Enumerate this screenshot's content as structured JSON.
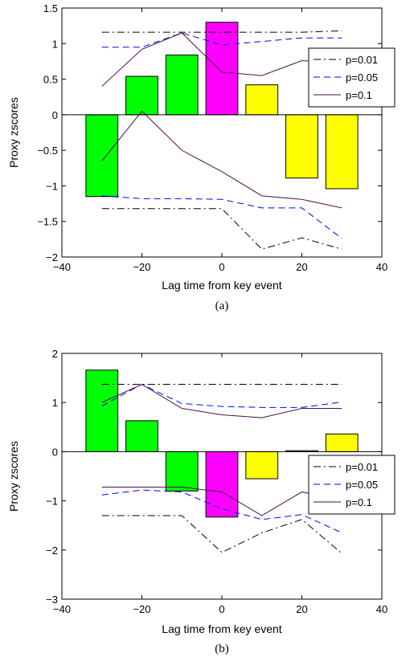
{
  "chart_data": [
    {
      "type": "bar",
      "caption": "(a)",
      "xlabel": "Lag time from key event",
      "ylabel": "Proxy zscores",
      "xlim": [
        -40,
        40
      ],
      "ylim": [
        -2,
        1.5
      ],
      "xticks": [
        -40,
        -20,
        0,
        20,
        40
      ],
      "xtick_labels": [
        "−40",
        "−20",
        "0",
        "20",
        "40"
      ],
      "yticks": [
        -2,
        -1.5,
        -1,
        -0.5,
        0,
        0.5,
        1,
        1.5
      ],
      "ytick_labels": [
        "−2",
        "−1.5",
        "−1",
        "−0.5",
        "0",
        "0.5",
        "1",
        "1.5"
      ],
      "bar_width": 8,
      "bars": [
        {
          "x": -30,
          "value": -1.15,
          "color": "#00ff00"
        },
        {
          "x": -20,
          "value": 0.54,
          "color": "#00ff00"
        },
        {
          "x": -10,
          "value": 0.84,
          "color": "#00ff00"
        },
        {
          "x": 0,
          "value": 1.3,
          "color": "#ff00ff"
        },
        {
          "x": 10,
          "value": 0.42,
          "color": "#ffff00"
        },
        {
          "x": 20,
          "value": -0.89,
          "color": "#ffff00"
        },
        {
          "x": 30,
          "value": -1.04,
          "color": "#ffff00"
        }
      ],
      "legend_position": "top-right",
      "series": [
        {
          "name": "p=0.01",
          "style": "dashdot",
          "color": "#000000",
          "upper": [
            [
              -30,
              1.16
            ],
            [
              -20,
              1.16
            ],
            [
              -10,
              1.16
            ],
            [
              0,
              1.16
            ],
            [
              10,
              1.16
            ],
            [
              20,
              1.16
            ],
            [
              30,
              1.18
            ]
          ],
          "lower": [
            [
              -30,
              -1.32
            ],
            [
              -20,
              -1.32
            ],
            [
              -10,
              -1.32
            ],
            [
              0,
              -1.32
            ],
            [
              10,
              -1.89
            ],
            [
              20,
              -1.73
            ],
            [
              30,
              -1.89
            ]
          ]
        },
        {
          "name": "p=0.05",
          "style": "dashed",
          "color": "#0000ff",
          "upper": [
            [
              -30,
              0.95
            ],
            [
              -20,
              0.95
            ],
            [
              -10,
              1.15
            ],
            [
              0,
              0.98
            ],
            [
              10,
              1.03
            ],
            [
              20,
              1.08
            ],
            [
              30,
              1.08
            ]
          ],
          "lower": [
            [
              -30,
              -1.14
            ],
            [
              -20,
              -1.18
            ],
            [
              -10,
              -1.18
            ],
            [
              0,
              -1.19
            ],
            [
              10,
              -1.31
            ],
            [
              20,
              -1.31
            ],
            [
              30,
              -1.74
            ]
          ]
        },
        {
          "name": "p=0.1",
          "style": "solid",
          "color": "#4b0f4b",
          "upper": [
            [
              -30,
              0.4
            ],
            [
              -20,
              0.92
            ],
            [
              -10,
              1.15
            ],
            [
              0,
              0.6
            ],
            [
              10,
              0.55
            ],
            [
              20,
              0.76
            ],
            [
              30,
              0.72
            ]
          ],
          "lower": [
            [
              -30,
              -0.65
            ],
            [
              -20,
              0.05
            ],
            [
              -10,
              -0.5
            ],
            [
              0,
              -0.8
            ],
            [
              10,
              -1.14
            ],
            [
              20,
              -1.19
            ],
            [
              30,
              -1.31
            ]
          ]
        }
      ]
    },
    {
      "type": "bar",
      "caption": "(b)",
      "xlabel": "Lag time from key event",
      "ylabel": "Proxy zscores",
      "xlim": [
        -40,
        40
      ],
      "ylim": [
        -3,
        2
      ],
      "xticks": [
        -40,
        -20,
        0,
        20,
        40
      ],
      "xtick_labels": [
        "−40",
        "−20",
        "0",
        "20",
        "40"
      ],
      "yticks": [
        -3,
        -2,
        -1,
        0,
        1,
        2
      ],
      "ytick_labels": [
        "−3",
        "−2",
        "−1",
        "0",
        "1",
        "2"
      ],
      "bar_width": 8,
      "bars": [
        {
          "x": -30,
          "value": 1.66,
          "color": "#00ff00"
        },
        {
          "x": -20,
          "value": 0.63,
          "color": "#00ff00"
        },
        {
          "x": -10,
          "value": -0.8,
          "color": "#00ff00"
        },
        {
          "x": 0,
          "value": -1.33,
          "color": "#ff00ff"
        },
        {
          "x": 10,
          "value": -0.55,
          "color": "#ffff00"
        },
        {
          "x": 20,
          "value": 0.02,
          "color": "#ffff00"
        },
        {
          "x": 30,
          "value": 0.36,
          "color": "#ffff00"
        }
      ],
      "legend_position": "right",
      "series": [
        {
          "name": "p=0.01",
          "style": "dashdot",
          "color": "#000000",
          "upper": [
            [
              -30,
              1.37
            ],
            [
              -20,
              1.37
            ],
            [
              -10,
              1.37
            ],
            [
              0,
              1.37
            ],
            [
              10,
              1.37
            ],
            [
              20,
              1.37
            ],
            [
              30,
              1.37
            ]
          ],
          "lower": [
            [
              -30,
              -1.3
            ],
            [
              -20,
              -1.3
            ],
            [
              -10,
              -1.3
            ],
            [
              0,
              -2.05
            ],
            [
              10,
              -1.65
            ],
            [
              20,
              -1.38
            ],
            [
              30,
              -2.07
            ]
          ]
        },
        {
          "name": "p=0.05",
          "style": "dashed",
          "color": "#0000ff",
          "upper": [
            [
              -30,
              0.93
            ],
            [
              -20,
              1.37
            ],
            [
              -10,
              0.98
            ],
            [
              0,
              0.92
            ],
            [
              10,
              0.9
            ],
            [
              20,
              0.9
            ],
            [
              30,
              1.01
            ]
          ],
          "lower": [
            [
              -30,
              -0.88
            ],
            [
              -20,
              -0.78
            ],
            [
              -10,
              -0.82
            ],
            [
              0,
              -1.16
            ],
            [
              10,
              -1.38
            ],
            [
              20,
              -1.28
            ],
            [
              30,
              -1.65
            ]
          ]
        },
        {
          "name": "p=0.1",
          "style": "solid",
          "color": "#4b0f4b",
          "upper": [
            [
              -30,
              1.0
            ],
            [
              -20,
              1.37
            ],
            [
              -10,
              0.88
            ],
            [
              0,
              0.75
            ],
            [
              10,
              0.69
            ],
            [
              20,
              0.88
            ],
            [
              30,
              0.88
            ]
          ],
          "lower": [
            [
              -30,
              -0.72
            ],
            [
              -20,
              -0.72
            ],
            [
              -10,
              -0.72
            ],
            [
              0,
              -0.82
            ],
            [
              10,
              -1.3
            ],
            [
              20,
              -0.82
            ],
            [
              30,
              -0.98
            ]
          ]
        }
      ]
    }
  ]
}
